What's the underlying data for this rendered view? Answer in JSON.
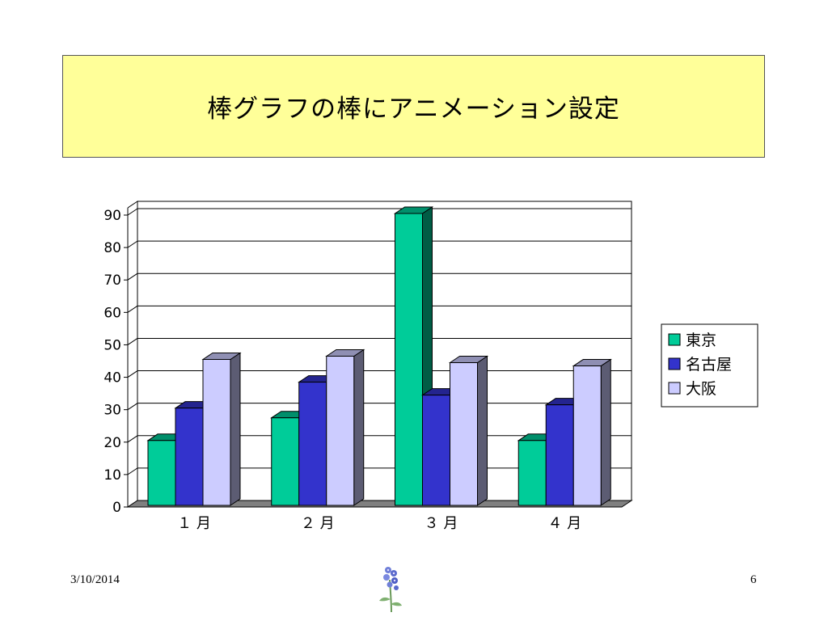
{
  "slide": {
    "title": "棒グラフの棒にアニメーション設定",
    "date": "3/10/2014",
    "page_number": "6"
  },
  "colors": {
    "title_background": "#ffff99"
  },
  "decoration": {
    "flower_icon": "flower-icon"
  },
  "chart_data": {
    "type": "bar",
    "style": "3d-clustered",
    "categories": [
      "１ 月",
      "２ 月",
      "３ 月",
      "４ 月"
    ],
    "series": [
      {
        "name": "東京",
        "values": [
          20,
          27,
          90,
          20
        ],
        "color": "#00cc99"
      },
      {
        "name": "名古屋",
        "values": [
          30,
          38,
          34,
          31
        ],
        "color": "#3333cc"
      },
      {
        "name": "大阪",
        "values": [
          45,
          46,
          44,
          43
        ],
        "color": "#ccccff"
      }
    ],
    "yticks": [
      "0",
      "10",
      "20",
      "30",
      "40",
      "50",
      "60",
      "70",
      "80",
      "90"
    ],
    "ylim": [
      0,
      90
    ],
    "grid": true,
    "legend_position": "right"
  }
}
